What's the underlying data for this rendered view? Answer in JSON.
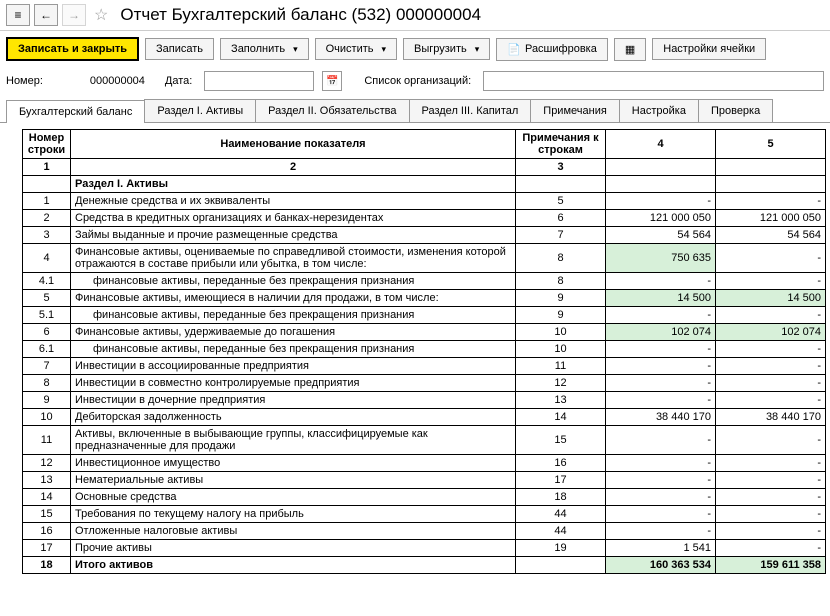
{
  "nav": {
    "menu_icon": "≡",
    "back": "←",
    "forward": "→",
    "star": "☆"
  },
  "title": "Отчет Бухгалтерский баланс (532) 000000004",
  "toolbar": {
    "save_close": "Записать и закрыть",
    "save": "Записать",
    "fill": "Заполнить",
    "clear": "Очистить",
    "export": "Выгрузить",
    "decode": "Расшифровка",
    "cell_settings": "Настройки ячейки"
  },
  "fields": {
    "number_label": "Номер:",
    "number_value": "000000004",
    "date_label": "Дата:",
    "date_value": "",
    "orgs_label": "Список организаций:",
    "orgs_value": ""
  },
  "tabs": [
    {
      "label": "Бухгалтерский баланс",
      "active": true
    },
    {
      "label": "Раздел I. Активы",
      "active": false
    },
    {
      "label": "Раздел II. Обязательства",
      "active": false
    },
    {
      "label": "Раздел III. Капитал",
      "active": false
    },
    {
      "label": "Примечания",
      "active": false
    },
    {
      "label": "Настройка",
      "active": false
    },
    {
      "label": "Проверка",
      "active": false
    }
  ],
  "grid": {
    "headers": {
      "row": "Номер строки",
      "name": "Наименование показателя",
      "notes": "Примечания к строкам",
      "c4": "4",
      "c5": "5",
      "sub_row": "1",
      "sub_name": "2",
      "sub_notes": "3"
    },
    "rows": [
      {
        "type": "section",
        "num": "",
        "name": "Раздел I. Активы",
        "note": "",
        "v4": "",
        "v5": ""
      },
      {
        "type": "data",
        "num": "1",
        "name": "Денежные средства и их эквиваленты",
        "note": "5",
        "v4": "-",
        "v5": "-"
      },
      {
        "type": "data",
        "num": "2",
        "name": "Средства в кредитных организациях и банках-нерезидентах",
        "note": "6",
        "v4": "121 000 050",
        "v5": "121 000 050"
      },
      {
        "type": "data",
        "num": "3",
        "name": "Займы выданные и прочие размещенные средства",
        "note": "7",
        "v4": "54 564",
        "v5": "54 564"
      },
      {
        "type": "data",
        "num": "4",
        "name": "Финансовые активы, оцениваемые по справедливой стоимости, изменения которой отражаются в составе прибыли или убытка, в том числе:",
        "note": "8",
        "v4": "750 635",
        "v5": "-",
        "hl4": true
      },
      {
        "type": "sub",
        "num": "4.1",
        "name": "финансовые активы, переданные без прекращения признания",
        "note": "8",
        "v4": "-",
        "v5": "-"
      },
      {
        "type": "data",
        "num": "5",
        "name": "Финансовые активы, имеющиеся в наличии для продажи, в том числе:",
        "note": "9",
        "v4": "14 500",
        "v5": "14 500",
        "hl4": true,
        "hl5": true
      },
      {
        "type": "sub",
        "num": "5.1",
        "name": "финансовые активы, переданные без прекращения признания",
        "note": "9",
        "v4": "-",
        "v5": "-"
      },
      {
        "type": "data",
        "num": "6",
        "name": "Финансовые активы, удерживаемые до погашения",
        "note": "10",
        "v4": "102 074",
        "v5": "102 074",
        "hl4": true,
        "hl5": true
      },
      {
        "type": "sub",
        "num": "6.1",
        "name": "финансовые активы, переданные без прекращения признания",
        "note": "10",
        "v4": "-",
        "v5": "-"
      },
      {
        "type": "data",
        "num": "7",
        "name": "Инвестиции в ассоциированные предприятия",
        "note": "11",
        "v4": "-",
        "v5": "-"
      },
      {
        "type": "data",
        "num": "8",
        "name": "Инвестиции в совместно контролируемые предприятия",
        "note": "12",
        "v4": "-",
        "v5": "-"
      },
      {
        "type": "data",
        "num": "9",
        "name": "Инвестиции в дочерние предприятия",
        "note": "13",
        "v4": "-",
        "v5": "-"
      },
      {
        "type": "data",
        "num": "10",
        "name": "Дебиторская задолженность",
        "note": "14",
        "v4": "38 440 170",
        "v5": "38 440 170"
      },
      {
        "type": "data",
        "num": "11",
        "name": "Активы, включенные в выбывающие группы, классифицируемые как предназначенные для продажи",
        "note": "15",
        "v4": "-",
        "v5": "-"
      },
      {
        "type": "data",
        "num": "12",
        "name": "Инвестиционное имущество",
        "note": "16",
        "v4": "-",
        "v5": "-"
      },
      {
        "type": "data",
        "num": "13",
        "name": "Нематериальные активы",
        "note": "17",
        "v4": "-",
        "v5": "-"
      },
      {
        "type": "data",
        "num": "14",
        "name": "Основные средства",
        "note": "18",
        "v4": "-",
        "v5": "-"
      },
      {
        "type": "data",
        "num": "15",
        "name": "Требования по текущему налогу на прибыль",
        "note": "44",
        "v4": "-",
        "v5": "-"
      },
      {
        "type": "data",
        "num": "16",
        "name": "Отложенные налоговые активы",
        "note": "44",
        "v4": "-",
        "v5": "-"
      },
      {
        "type": "data",
        "num": "17",
        "name": "Прочие активы",
        "note": "19",
        "v4": "1 541",
        "v5": "-"
      },
      {
        "type": "total",
        "num": "18",
        "name": "Итого активов",
        "note": "",
        "v4": "160 363 534",
        "v5": "159 611 358",
        "hl4": true,
        "hl5": true
      }
    ]
  }
}
